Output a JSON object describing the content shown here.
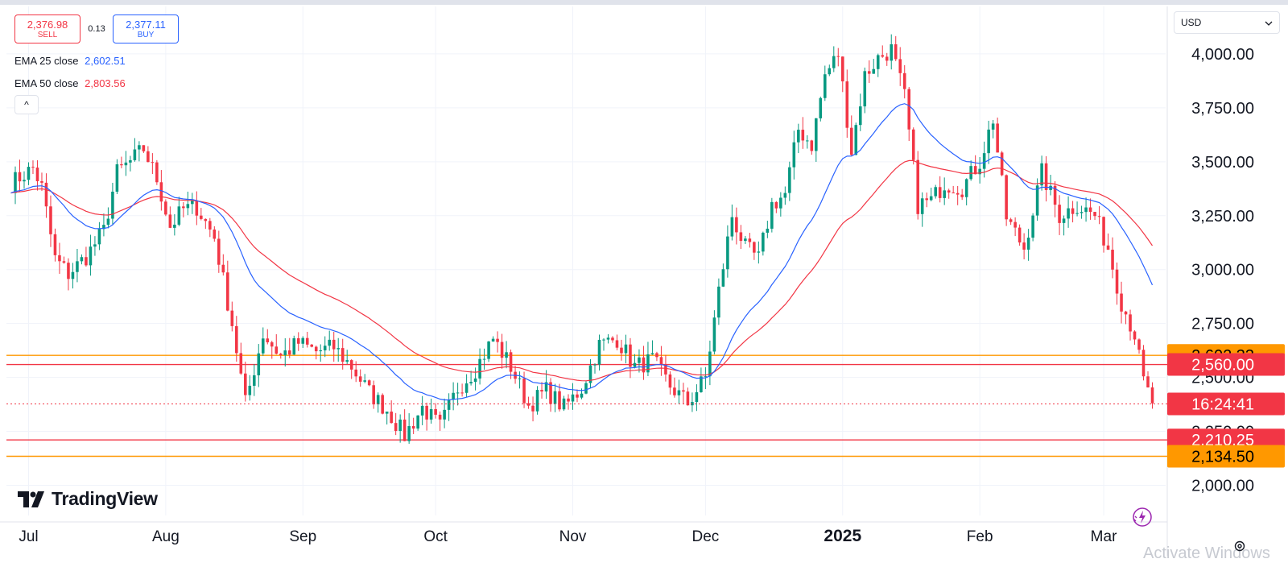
{
  "header": {
    "sell_price": "2,376.98",
    "sell_label": "SELL",
    "spread": "0.13",
    "buy_price": "2,377.11",
    "buy_label": "BUY",
    "collapse_glyph": "^",
    "currency": "USD",
    "currency_icon": "chevron-down-icon"
  },
  "indicators": [
    {
      "label": "EMA 25 close",
      "value": "2,602.51",
      "color": "#2962ff"
    },
    {
      "label": "EMA 50 close",
      "value": "2,803.56",
      "color": "#f23645"
    }
  ],
  "watermark": "Activate Windows",
  "brand": "TradingView",
  "chart_data": {
    "type": "candlestick",
    "yaxis": {
      "ticks": [
        2000,
        2250,
        2500,
        2750,
        3000,
        3250,
        3500,
        3750,
        4000
      ],
      "tick_labels": [
        "2,000.00",
        "2,250.00",
        "2,500.00",
        "2,750.00",
        "3,000.00",
        "3,250.00",
        "3,500.00",
        "3,750.00",
        "4,000.00"
      ],
      "range": [
        1860,
        4220
      ]
    },
    "xaxis": {
      "range": [
        "2024-06-26",
        "2025-03-15"
      ],
      "ticks": [
        {
          "label": "Jul",
          "date": "2024-07-01",
          "bold": false
        },
        {
          "label": "Aug",
          "date": "2024-08-01",
          "bold": false
        },
        {
          "label": "Sep",
          "date": "2024-09-01",
          "bold": false
        },
        {
          "label": "Oct",
          "date": "2024-10-01",
          "bold": false
        },
        {
          "label": "Nov",
          "date": "2024-11-01",
          "bold": false
        },
        {
          "label": "Dec",
          "date": "2024-12-01",
          "bold": false
        },
        {
          "label": "2025",
          "date": "2025-01-01",
          "bold": true
        },
        {
          "label": "Feb",
          "date": "2025-02-01",
          "bold": false
        },
        {
          "label": "Mar",
          "date": "2025-03-01",
          "bold": false
        }
      ]
    },
    "price_axis_labels": [
      {
        "text": "2,602.33",
        "value": 2602.33,
        "bg": "#ff9800",
        "fg": "#000000"
      },
      {
        "text": "2,560.00",
        "value": 2560,
        "bg": "#f23645",
        "fg": "#ffffff"
      },
      {
        "text": "16:24:41",
        "value": 2377,
        "bg": "#f23645",
        "fg": "#ffffff"
      },
      {
        "text": "2,210.25",
        "value": 2210.25,
        "bg": "#f23645",
        "fg": "#ffffff"
      },
      {
        "text": "2,134.50",
        "value": 2134.5,
        "bg": "#ff9800",
        "fg": "#000000"
      }
    ],
    "hlines": [
      {
        "value": 2602.33,
        "color": "#ff9800"
      },
      {
        "value": 2560,
        "color": "#f23645"
      },
      {
        "value": 2210.25,
        "color": "#f23645"
      },
      {
        "value": 2134.5,
        "color": "#ff9800"
      }
    ],
    "last_price": {
      "value": 2377.11,
      "color": "#f23645"
    },
    "up_color": "#089981",
    "down_color": "#f23645",
    "ema25_color": "#2962ff",
    "ema50_color": "#f23645",
    "close_path": [
      [
        "2024-06-27",
        3400
      ],
      [
        "2024-07-02",
        3470
      ],
      [
        "2024-07-04",
        3380
      ],
      [
        "2024-07-07",
        3050
      ],
      [
        "2024-07-10",
        2980
      ],
      [
        "2024-07-14",
        3060
      ],
      [
        "2024-07-18",
        3180
      ],
      [
        "2024-07-21",
        3450
      ],
      [
        "2024-07-24",
        3500
      ],
      [
        "2024-07-27",
        3560
      ],
      [
        "2024-07-30",
        3420
      ],
      [
        "2024-08-02",
        3200
      ],
      [
        "2024-08-05",
        3280
      ],
      [
        "2024-08-08",
        3290
      ],
      [
        "2024-08-12",
        3150
      ],
      [
        "2024-08-16",
        2750
      ],
      [
        "2024-08-19",
        2380
      ],
      [
        "2024-08-23",
        2700
      ],
      [
        "2024-08-27",
        2600
      ],
      [
        "2024-08-31",
        2660
      ],
      [
        "2024-09-04",
        2620
      ],
      [
        "2024-09-08",
        2640
      ],
      [
        "2024-09-12",
        2550
      ],
      [
        "2024-09-16",
        2430
      ],
      [
        "2024-09-20",
        2350
      ],
      [
        "2024-09-24",
        2230
      ],
      [
        "2024-09-28",
        2360
      ],
      [
        "2024-10-02",
        2270
      ],
      [
        "2024-10-06",
        2450
      ],
      [
        "2024-10-10",
        2540
      ],
      [
        "2024-10-14",
        2680
      ],
      [
        "2024-10-18",
        2550
      ],
      [
        "2024-10-22",
        2370
      ],
      [
        "2024-10-26",
        2440
      ],
      [
        "2024-10-30",
        2360
      ],
      [
        "2024-11-03",
        2450
      ],
      [
        "2024-11-07",
        2650
      ],
      [
        "2024-11-11",
        2680
      ],
      [
        "2024-11-15",
        2550
      ],
      [
        "2024-11-19",
        2580
      ],
      [
        "2024-11-23",
        2460
      ],
      [
        "2024-11-27",
        2380
      ],
      [
        "2024-12-01",
        2500
      ],
      [
        "2024-12-04",
        2900
      ],
      [
        "2024-12-07",
        3250
      ],
      [
        "2024-12-10",
        3100
      ],
      [
        "2024-12-13",
        3050
      ],
      [
        "2024-12-16",
        3300
      ],
      [
        "2024-12-19",
        3350
      ],
      [
        "2024-12-22",
        3650
      ],
      [
        "2024-12-25",
        3580
      ],
      [
        "2024-12-28",
        3900
      ],
      [
        "2024-12-31",
        4000
      ],
      [
        "2025-01-03",
        3550
      ],
      [
        "2025-01-06",
        3900
      ],
      [
        "2025-01-09",
        3980
      ],
      [
        "2025-01-12",
        4020
      ],
      [
        "2025-01-15",
        3800
      ],
      [
        "2025-01-18",
        3300
      ],
      [
        "2025-01-21",
        3320
      ],
      [
        "2025-01-24",
        3400
      ],
      [
        "2025-01-28",
        3380
      ],
      [
        "2025-02-01",
        3500
      ],
      [
        "2025-02-04",
        3700
      ],
      [
        "2025-02-07",
        3240
      ],
      [
        "2025-02-11",
        3100
      ],
      [
        "2025-02-15",
        3450
      ],
      [
        "2025-02-19",
        3250
      ],
      [
        "2025-02-23",
        3300
      ],
      [
        "2025-02-27",
        3250
      ],
      [
        "2025-03-02",
        3100
      ],
      [
        "2025-03-05",
        2850
      ],
      [
        "2025-03-08",
        2700
      ],
      [
        "2025-03-10",
        2480
      ],
      [
        "2025-03-12",
        2380
      ]
    ]
  }
}
